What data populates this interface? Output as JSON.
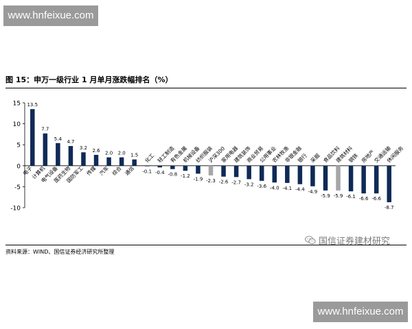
{
  "watermark": {
    "text": "www.hnfeixue.com"
  },
  "figure_title": "图 15：申万一级行业 1 月单月涨跌幅排名（%）",
  "source": "资料来源：WIND、国信证券经济研究所整理",
  "brand": {
    "name": "国信证券建材研究",
    "icon": "wechat-icon"
  },
  "chart_data": {
    "type": "bar",
    "title": "",
    "xlabel": "",
    "ylabel": "",
    "ylim": [
      -10,
      15
    ],
    "yticks": [
      -10,
      -5,
      0,
      5,
      10,
      15
    ],
    "grid": false,
    "legend": "none",
    "colors": {
      "default": "#0f2a56",
      "highlight": "#a6a6a6"
    },
    "categories": [
      "电子",
      "计算机",
      "电气设备",
      "医药生物",
      "国防军工",
      "传媒",
      "汽车",
      "综合",
      "通信",
      "化工",
      "轻工制造",
      "有色金属",
      "机械设备",
      "纺织服装",
      "沪深300",
      "家用电器",
      "建筑装饰",
      "商业贸易",
      "公用事业",
      "农林牧渔",
      "非银金融",
      "银行",
      "采掘",
      "食品饮料",
      "建筑材料",
      "钢铁",
      "房地产",
      "交通运输",
      "休闲服务"
    ],
    "values": [
      13.5,
      7.7,
      5.4,
      4.7,
      3.2,
      2.6,
      2.0,
      2.0,
      1.5,
      -0.1,
      -0.4,
      -0.8,
      -1.2,
      -1.9,
      -2.3,
      -2.6,
      -2.7,
      -3.2,
      -3.6,
      -4.0,
      -4.1,
      -4.4,
      -4.9,
      -5.9,
      -5.9,
      -6.1,
      -6.6,
      -6.6,
      -8.7
    ],
    "value_labels": [
      "13.5",
      "7.7",
      "5.4",
      "4.7",
      "3.2",
      "2.6",
      "2.0",
      "2.0",
      "1.5",
      "-0.1",
      "-0.4",
      "-0.8",
      "-1.2",
      "-1.9",
      "-2.3",
      "-2.6",
      "-2.7",
      "-3.2",
      "-3.6",
      "-4.0",
      "-4.1",
      "-4.4",
      "-4.9",
      "-5.9",
      "-5.9",
      "-6.1",
      "-6.6",
      "-6.6",
      "-8.7"
    ],
    "highlighted": [
      "沪深300",
      "建筑材料"
    ]
  }
}
